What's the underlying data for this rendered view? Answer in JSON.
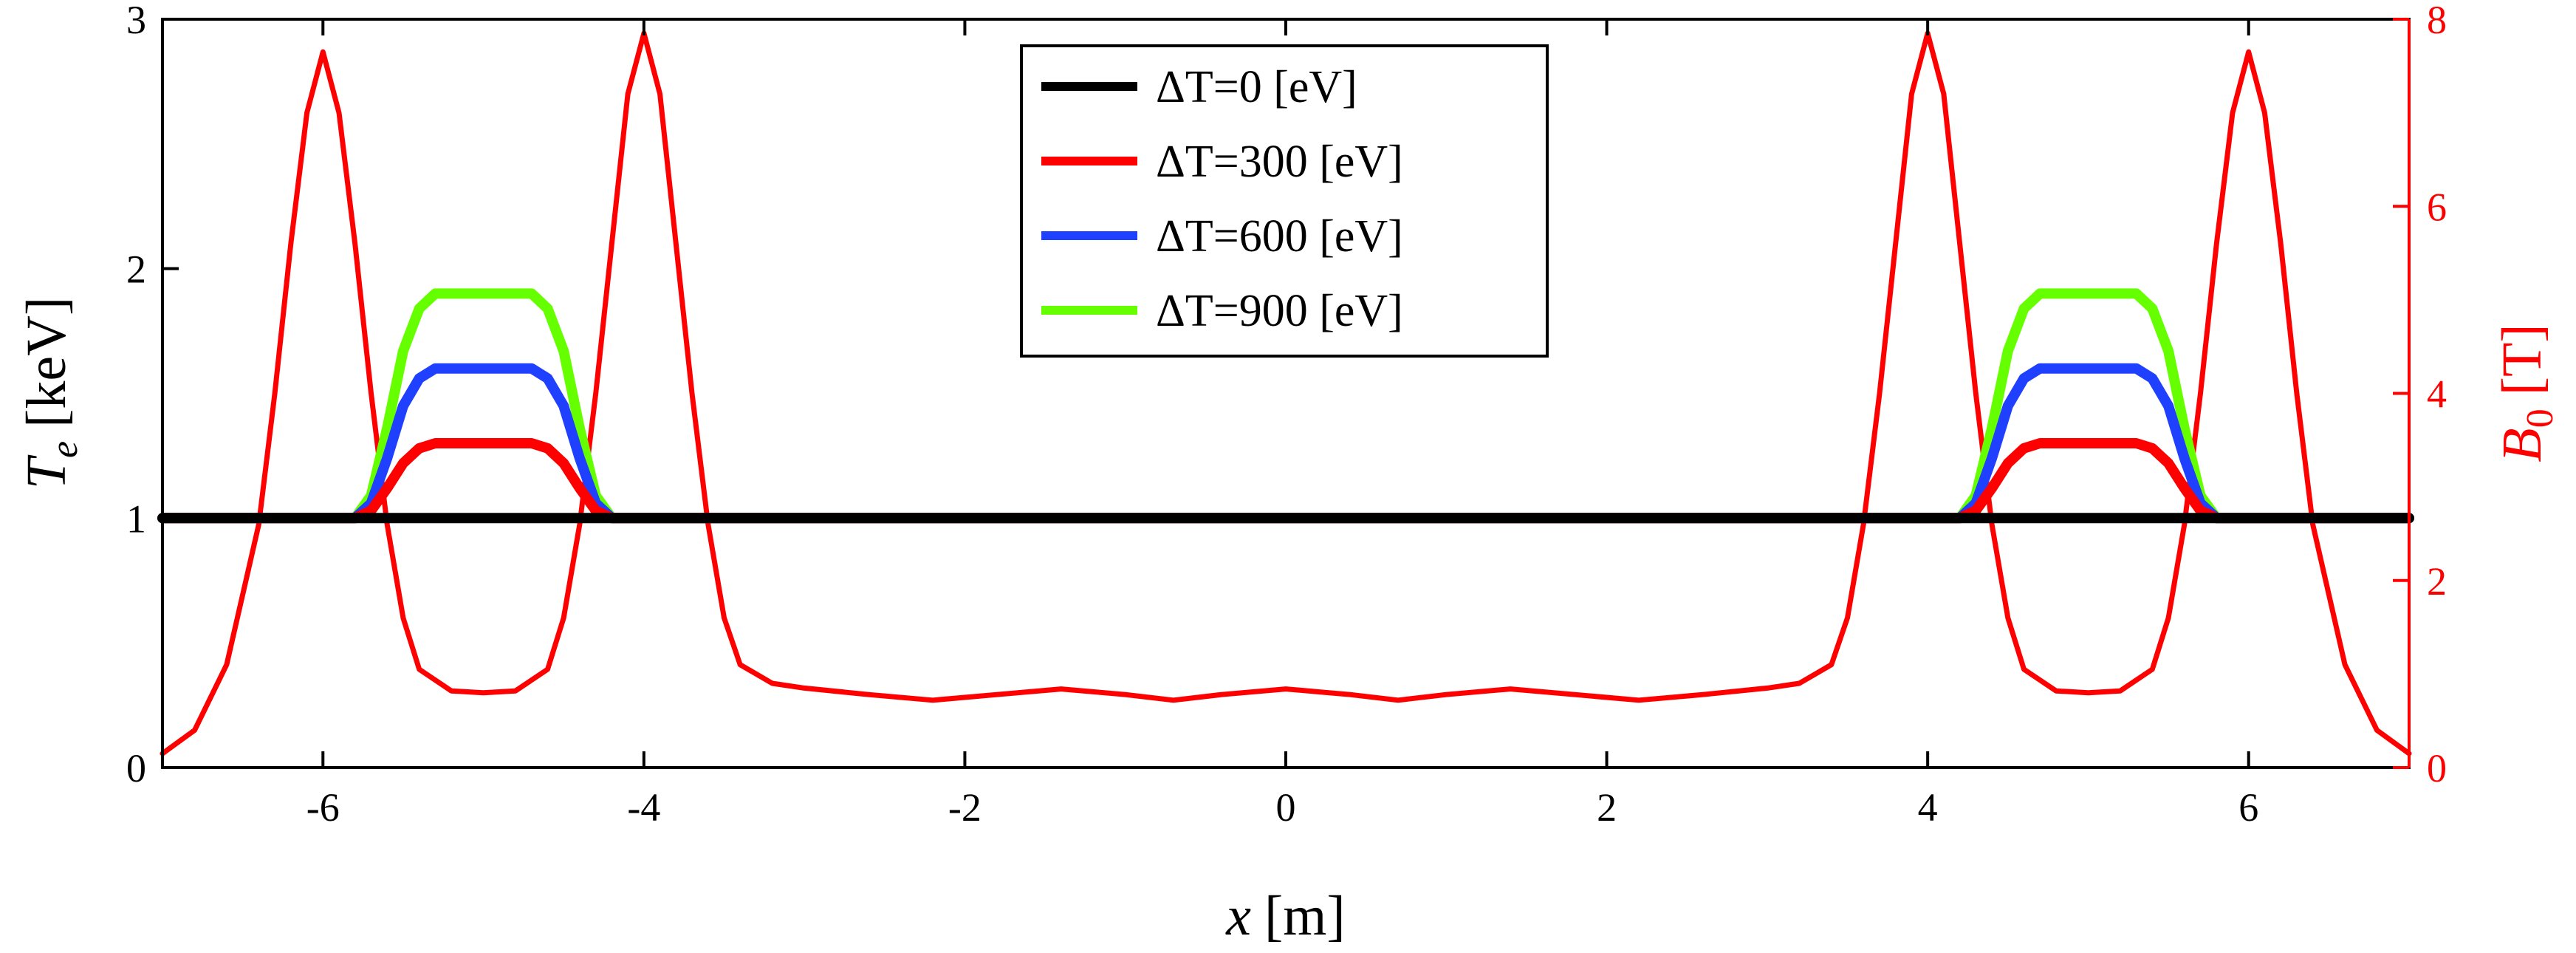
{
  "chart_data": {
    "type": "line",
    "xlabel": {
      "var": "x",
      "unit": "[m]"
    },
    "ylabel_left": {
      "var": "T",
      "sub": "e",
      "unit": "[keV]"
    },
    "ylabel_right": {
      "var": "B",
      "sub": "0",
      "unit": "[T]"
    },
    "xlim": [
      -7,
      7
    ],
    "ylim_left": [
      0,
      3
    ],
    "ylim_right": [
      0,
      8
    ],
    "x_ticks": [
      -6,
      -4,
      -2,
      0,
      2,
      4,
      6
    ],
    "x_tick_labels": [
      "-6",
      "-4",
      "-2",
      "0",
      "2",
      "4",
      "6"
    ],
    "y_ticks_left": [
      0,
      1,
      2,
      3
    ],
    "y_tick_labels_left": [
      "0",
      "1",
      "2",
      "3"
    ],
    "y_ticks_right": [
      0,
      2,
      4,
      6,
      8
    ],
    "y_tick_labels_right": [
      "0",
      "2",
      "4",
      "6",
      "8"
    ],
    "grid": false,
    "legend_position": "top-center",
    "colors": {
      "axis_left": "#000000",
      "axis_right": "#ff0000"
    },
    "series": [
      {
        "name": "ΔT =0 [eV]",
        "delta_label": "ΔT",
        "value_label": "=0 [eV]",
        "axis": "left",
        "color": "#000000",
        "x": [
          -7,
          -5.75,
          -4.25,
          4.25,
          5.75,
          7
        ],
        "y": [
          1,
          1,
          1,
          1,
          1,
          1
        ]
      },
      {
        "name": "ΔT =300 [eV]",
        "delta_label": "ΔT",
        "value_label": "=300 [eV]",
        "axis": "left",
        "color": "#ff0000",
        "x": [
          -7,
          -5.8,
          -5.7,
          -5.6,
          -5.5,
          -5.4,
          -5.3,
          -5.0,
          -4.7,
          -4.6,
          -4.5,
          -4.4,
          -4.3,
          -4.2,
          4.2,
          4.3,
          4.4,
          4.5,
          4.6,
          4.7,
          5.0,
          5.3,
          5.4,
          5.5,
          5.6,
          5.7,
          5.8,
          7
        ],
        "y": [
          1,
          1,
          1.03,
          1.12,
          1.22,
          1.28,
          1.3,
          1.3,
          1.3,
          1.28,
          1.22,
          1.12,
          1.03,
          1,
          1,
          1.03,
          1.12,
          1.22,
          1.28,
          1.3,
          1.3,
          1.3,
          1.28,
          1.22,
          1.12,
          1.03,
          1,
          1
        ]
      },
      {
        "name": "ΔT =600 [eV]",
        "delta_label": "ΔT",
        "value_label": "=600 [eV]",
        "axis": "left",
        "color": "#2040ff",
        "x": [
          -7,
          -5.8,
          -5.7,
          -5.6,
          -5.5,
          -5.4,
          -5.3,
          -5.0,
          -4.7,
          -4.6,
          -4.5,
          -4.4,
          -4.3,
          -4.2,
          4.2,
          4.3,
          4.4,
          4.5,
          4.6,
          4.7,
          5.0,
          5.3,
          5.4,
          5.5,
          5.6,
          5.7,
          5.8,
          7
        ],
        "y": [
          1,
          1,
          1.06,
          1.24,
          1.45,
          1.56,
          1.6,
          1.6,
          1.6,
          1.56,
          1.45,
          1.24,
          1.06,
          1,
          1,
          1.06,
          1.24,
          1.45,
          1.56,
          1.6,
          1.6,
          1.6,
          1.56,
          1.45,
          1.24,
          1.06,
          1,
          1
        ]
      },
      {
        "name": "ΔT =900 [eV]",
        "delta_label": "ΔT",
        "value_label": "=900 [eV]",
        "axis": "left",
        "color": "#66ff00",
        "x": [
          -7,
          -5.8,
          -5.7,
          -5.6,
          -5.5,
          -5.4,
          -5.3,
          -5.0,
          -4.7,
          -4.6,
          -4.5,
          -4.4,
          -4.3,
          -4.2,
          4.2,
          4.3,
          4.4,
          4.5,
          4.6,
          4.7,
          5.0,
          5.3,
          5.4,
          5.5,
          5.6,
          5.7,
          5.8,
          7
        ],
        "y": [
          1,
          1,
          1.09,
          1.36,
          1.67,
          1.84,
          1.9,
          1.9,
          1.9,
          1.84,
          1.67,
          1.36,
          1.09,
          1,
          1,
          1.09,
          1.36,
          1.67,
          1.84,
          1.9,
          1.9,
          1.9,
          1.84,
          1.67,
          1.36,
          1.09,
          1,
          1
        ]
      },
      {
        "name": "B0",
        "axis": "right",
        "color": "#ff0000",
        "x": [
          -7,
          -6.8,
          -6.6,
          -6.4,
          -6.3,
          -6.2,
          -6.1,
          -6.0,
          -5.9,
          -5.8,
          -5.7,
          -5.6,
          -5.5,
          -5.4,
          -5.2,
          -5.0,
          -4.8,
          -4.6,
          -4.5,
          -4.4,
          -4.3,
          -4.2,
          -4.1,
          -4.0,
          -3.9,
          -3.8,
          -3.7,
          -3.6,
          -3.5,
          -3.4,
          -3.2,
          -3.0,
          -2.6,
          -2.2,
          -1.8,
          -1.4,
          -1.0,
          -0.7,
          -0.4,
          0,
          0.4,
          0.7,
          1.0,
          1.4,
          1.8,
          2.2,
          2.6,
          3.0,
          3.2,
          3.4,
          3.5,
          3.6,
          3.7,
          3.8,
          3.9,
          4.0,
          4.1,
          4.2,
          4.3,
          4.4,
          4.5,
          4.6,
          4.8,
          5.0,
          5.2,
          5.4,
          5.5,
          5.6,
          5.7,
          5.8,
          5.9,
          6.0,
          6.1,
          6.2,
          6.3,
          6.4,
          6.6,
          6.8,
          7
        ],
        "y": [
          0.15,
          0.4,
          1.1,
          2.6,
          4.0,
          5.6,
          7.0,
          7.65,
          7.0,
          5.6,
          4.0,
          2.6,
          1.6,
          1.05,
          0.82,
          0.8,
          0.82,
          1.05,
          1.6,
          2.6,
          4.0,
          5.6,
          7.2,
          7.85,
          7.2,
          5.6,
          4.0,
          2.6,
          1.6,
          1.1,
          0.9,
          0.85,
          0.78,
          0.72,
          0.78,
          0.84,
          0.78,
          0.72,
          0.78,
          0.84,
          0.78,
          0.72,
          0.78,
          0.84,
          0.78,
          0.72,
          0.78,
          0.85,
          0.9,
          1.1,
          1.6,
          2.6,
          4.0,
          5.6,
          7.2,
          7.85,
          7.2,
          5.6,
          4.0,
          2.6,
          1.6,
          1.05,
          0.82,
          0.8,
          0.82,
          1.05,
          1.6,
          2.6,
          4.0,
          5.6,
          7.0,
          7.65,
          7.0,
          5.6,
          4.0,
          2.6,
          1.1,
          0.4,
          0.15
        ]
      }
    ]
  }
}
